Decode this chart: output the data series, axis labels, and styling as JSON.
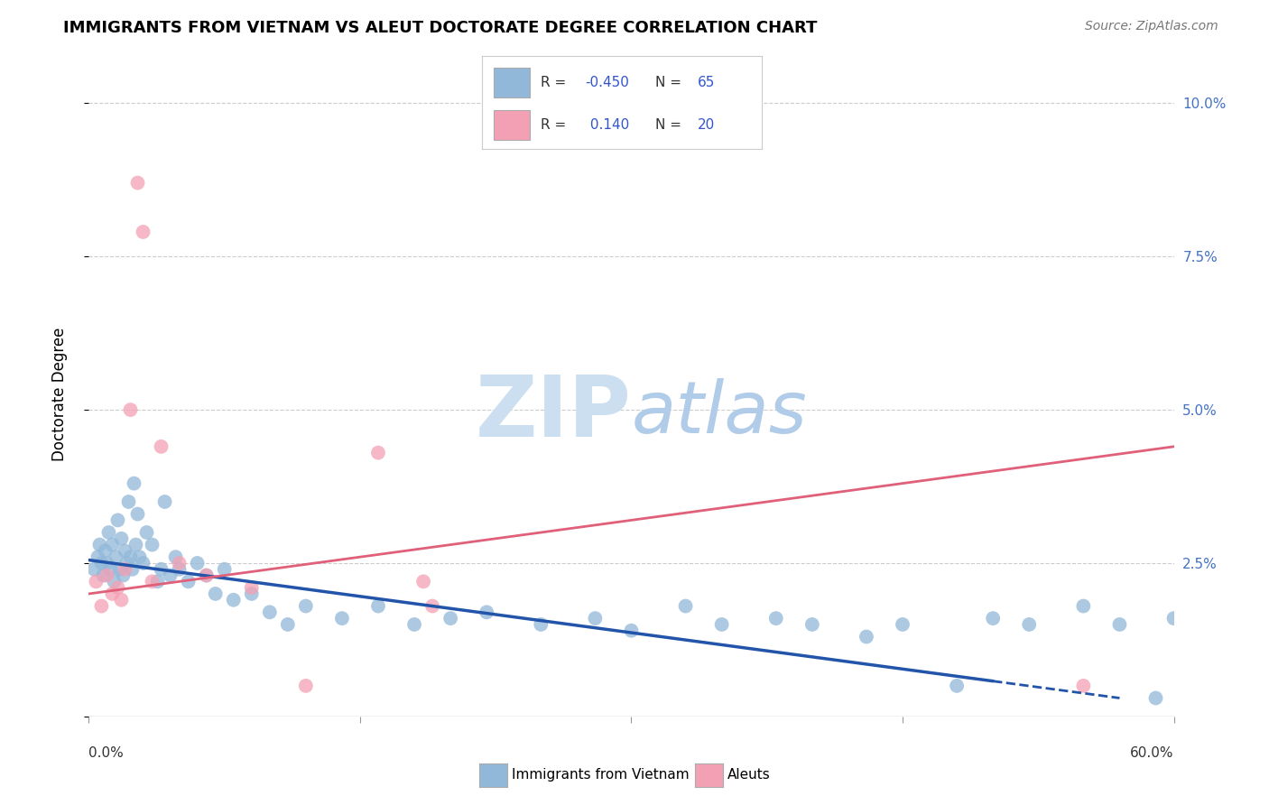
{
  "title": "IMMIGRANTS FROM VIETNAM VS ALEUT DOCTORATE DEGREE CORRELATION CHART",
  "source": "Source: ZipAtlas.com",
  "ylabel": "Doctorate Degree",
  "xlim": [
    0.0,
    60.0
  ],
  "ylim": [
    0.0,
    10.5
  ],
  "yticks": [
    0.0,
    2.5,
    5.0,
    7.5,
    10.0
  ],
  "right_axis_color": "#4472c4",
  "blue_color": "#92b8d9",
  "pink_color": "#f4a0b4",
  "trend_blue_color": "#2255aa",
  "trend_pink_color": "#e0607a",
  "watermark_zip_color": "#ccdff0",
  "watermark_atlas_color": "#b0cce8",
  "background": "#ffffff",
  "blue_x": [
    0.3,
    0.5,
    0.6,
    0.7,
    0.8,
    0.9,
    1.0,
    1.1,
    1.2,
    1.3,
    1.4,
    1.5,
    1.6,
    1.7,
    1.8,
    1.9,
    2.0,
    2.1,
    2.2,
    2.3,
    2.4,
    2.5,
    2.6,
    2.7,
    2.8,
    3.0,
    3.2,
    3.5,
    3.8,
    4.0,
    4.2,
    4.5,
    4.8,
    5.0,
    5.5,
    6.0,
    6.5,
    7.0,
    7.5,
    8.0,
    9.0,
    10.0,
    11.0,
    12.0,
    14.0,
    16.0,
    18.0,
    20.0,
    22.0,
    25.0,
    28.0,
    30.0,
    33.0,
    35.0,
    38.0,
    40.0,
    43.0,
    45.0,
    48.0,
    50.0,
    52.0,
    55.0,
    57.0,
    59.0,
    60.0
  ],
  "blue_y": [
    2.4,
    2.6,
    2.8,
    2.5,
    2.3,
    2.7,
    2.5,
    3.0,
    2.4,
    2.8,
    2.2,
    2.6,
    3.2,
    2.4,
    2.9,
    2.3,
    2.7,
    2.5,
    3.5,
    2.6,
    2.4,
    3.8,
    2.8,
    3.3,
    2.6,
    2.5,
    3.0,
    2.8,
    2.2,
    2.4,
    3.5,
    2.3,
    2.6,
    2.4,
    2.2,
    2.5,
    2.3,
    2.0,
    2.4,
    1.9,
    2.0,
    1.7,
    1.5,
    1.8,
    1.6,
    1.8,
    1.5,
    1.6,
    1.7,
    1.5,
    1.6,
    1.4,
    1.8,
    1.5,
    1.6,
    1.5,
    1.3,
    1.5,
    0.5,
    1.6,
    1.5,
    1.8,
    1.5,
    0.3,
    1.6
  ],
  "pink_x": [
    0.4,
    0.7,
    1.0,
    1.3,
    1.6,
    1.8,
    2.0,
    2.3,
    2.7,
    3.0,
    3.5,
    4.0,
    5.0,
    6.5,
    9.0,
    12.0,
    16.0,
    18.5,
    19.0,
    55.0
  ],
  "pink_y": [
    2.2,
    1.8,
    2.3,
    2.0,
    2.1,
    1.9,
    2.4,
    5.0,
    8.7,
    7.9,
    2.2,
    4.4,
    2.5,
    2.3,
    2.1,
    0.5,
    4.3,
    2.2,
    1.8,
    0.5
  ],
  "blue_trend_x0": 0.0,
  "blue_trend_y0": 2.55,
  "blue_trend_x1": 57.0,
  "blue_trend_y1": 0.3,
  "blue_solid_end": 50.0,
  "pink_trend_x0": 0.0,
  "pink_trend_y0": 2.0,
  "pink_trend_x1": 60.0,
  "pink_trend_y1": 4.4
}
